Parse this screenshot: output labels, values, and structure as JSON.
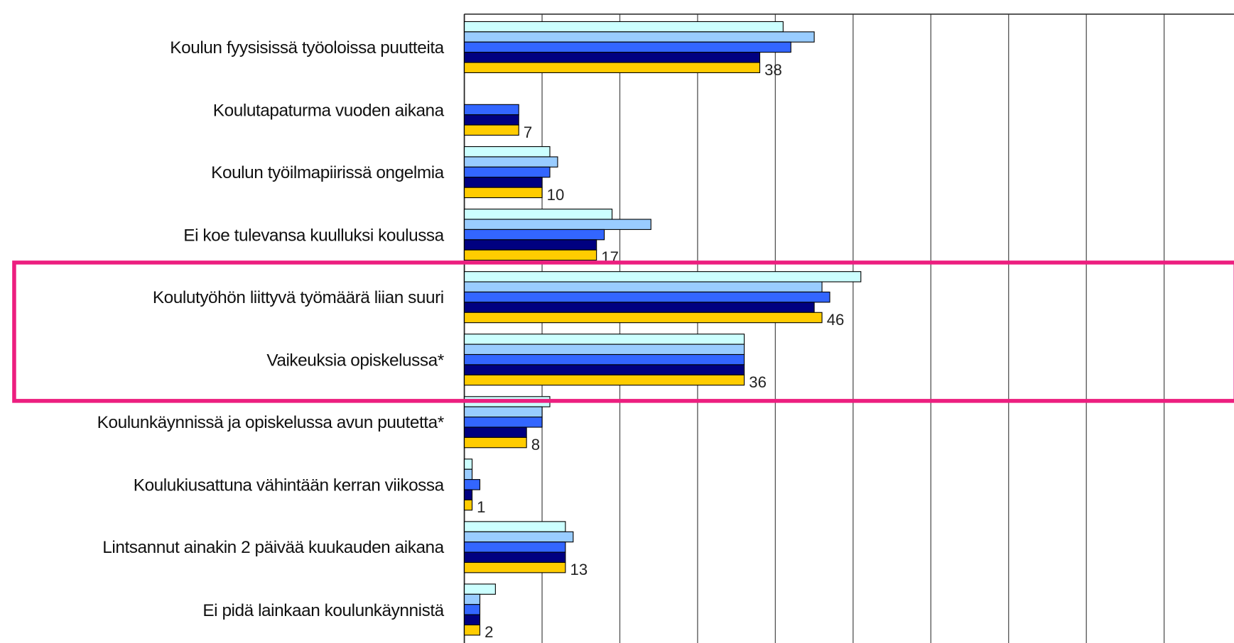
{
  "chart_data": {
    "type": "hbar",
    "categories": [
      "Koulun fyysisissä työoloissa puutteita",
      "Koulutapaturma vuoden aikana",
      "Koulun työilmapiirissä ongelmia",
      "Ei koe tulevansa kuulluksi koulussa",
      "Koulutyöhön liittyvä työmäärä liian suuri",
      "Vaikeuksia opiskelussa*",
      "Koulunkäynnissä ja opiskelussa avun puutetta*",
      "Koulukiusattuna vähintään kerran viikossa",
      "Lintsannut ainakin 2 päivää kuukauden aikana",
      "Ei pidä lainkaan koulunkäynnistä"
    ],
    "series": [
      {
        "color": "#ccffff",
        "values": [
          41,
          null,
          11,
          19,
          51,
          36,
          11,
          1,
          13,
          4
        ]
      },
      {
        "color": "#99ccff",
        "values": [
          45,
          null,
          12,
          24,
          46,
          36,
          10,
          1,
          14,
          2
        ]
      },
      {
        "color": "#3366ff",
        "values": [
          42,
          7,
          11,
          18,
          47,
          36,
          10,
          2,
          13,
          2
        ]
      },
      {
        "color": "#000080",
        "values": [
          38,
          7,
          10,
          17,
          45,
          36,
          8,
          1,
          13,
          2
        ]
      },
      {
        "color": "#ffcc00",
        "values": [
          38,
          7,
          10,
          17,
          46,
          36,
          8,
          1,
          13,
          2
        ]
      }
    ],
    "xlim": [
      0,
      100
    ],
    "xticks": [
      0,
      10,
      20,
      30,
      40,
      50,
      60,
      70,
      80,
      90
    ],
    "grid": true
  }
}
